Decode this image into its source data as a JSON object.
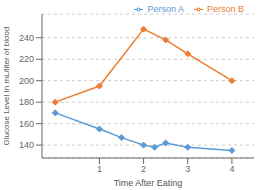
{
  "chart_data": {
    "type": "line",
    "xlabel": "Time After Eating",
    "ylabel": "Glucose Level In mL/liter of blood",
    "series": [
      {
        "name": "Person A",
        "color": "#5b9bd5",
        "marker": "diamond",
        "x": [
          0,
          1,
          1.5,
          2,
          2.25,
          2.5,
          3,
          4
        ],
        "values": [
          170,
          155,
          147,
          140,
          138,
          142,
          138,
          135
        ]
      },
      {
        "name": "Person B",
        "color": "#ed7d31",
        "marker": "diamond",
        "x": [
          0,
          1,
          2,
          2.5,
          3,
          4
        ],
        "values": [
          180,
          195,
          248,
          238,
          225,
          200
        ]
      }
    ],
    "xlim": [
      -0.3,
      4.5
    ],
    "xticks": [
      1,
      2,
      3,
      4
    ],
    "ylim": [
      128,
      262
    ],
    "yticks": [
      140,
      160,
      180,
      200,
      220,
      240
    ],
    "grid": "y",
    "legend": "upper right"
  }
}
